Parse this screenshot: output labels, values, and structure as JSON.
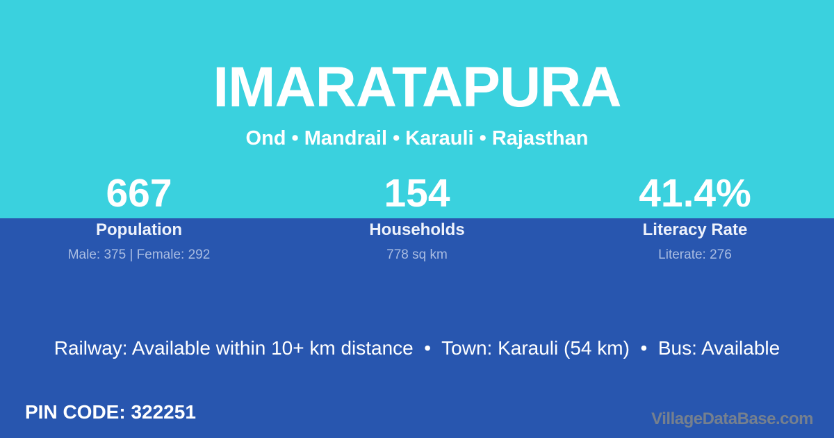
{
  "colors": {
    "top_background": "#3ad1de",
    "bottom_background": "#2856af",
    "primary_text": "#ffffff",
    "stat_label_text": "#eef2fb",
    "stat_detail_text": "#aabde2",
    "watermark_text": "#76808e"
  },
  "header": {
    "title": "IMARATAPURA",
    "subtitle": "Ond • Mandrail • Karauli • Rajasthan"
  },
  "stats": [
    {
      "value": "667",
      "label": "Population",
      "detail": "Male: 375 | Female: 292"
    },
    {
      "value": "154",
      "label": "Households",
      "detail": "778 sq km"
    },
    {
      "value": "41.4%",
      "label": "Literacy Rate",
      "detail": "Literate: 276"
    }
  ],
  "info_line": "Railway: Available within 10+ km distance  •  Town: Karauli (54 km)  •  Bus: Available",
  "footer": {
    "pin_code": "PIN CODE: 322251",
    "watermark": "VillageDataBase.com"
  }
}
